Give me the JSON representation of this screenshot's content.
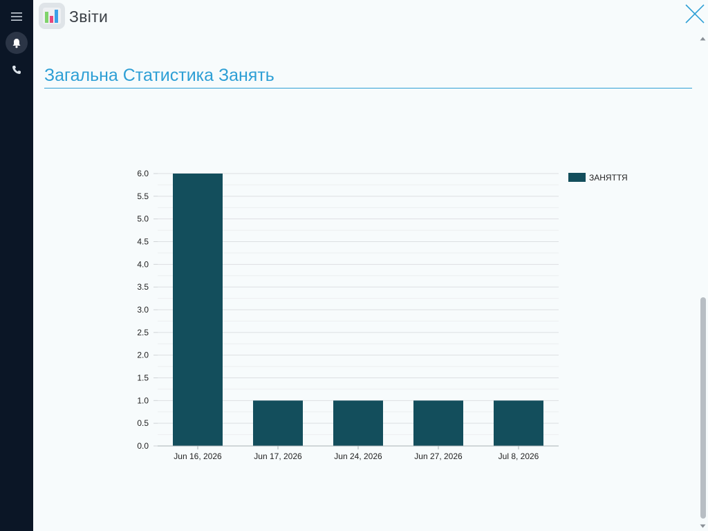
{
  "app": {
    "title": "Звіти",
    "icon": "bar-chart-app-icon"
  },
  "sidebar": {
    "items": [
      {
        "name": "menu",
        "icon": "hamburger-menu-icon"
      },
      {
        "name": "notifications",
        "icon": "bell-icon",
        "active": true
      },
      {
        "name": "calls",
        "icon": "phone-icon"
      }
    ]
  },
  "section": {
    "title": "Загальна Статистика Занять"
  },
  "colors": {
    "accent": "#2e9fd5",
    "sidebar_bg": "#0b1626",
    "bar": "#134e5c",
    "page_bg": "#f7fbfc"
  },
  "chart_data": {
    "type": "bar",
    "title": "",
    "xlabel": "",
    "ylabel": "",
    "categories": [
      "Jun 16, 2026",
      "Jun 17, 2026",
      "Jun 24, 2026",
      "Jun 27, 2026",
      "Jul 8, 2026"
    ],
    "series": [
      {
        "name": "ЗАНЯТТЯ",
        "values": [
          6,
          1,
          1,
          1,
          1
        ],
        "color": "#134e5c"
      }
    ],
    "ylim": [
      0,
      6
    ],
    "yticks": [
      "0.0",
      "0.5",
      "1.0",
      "1.5",
      "2.0",
      "2.5",
      "3.0",
      "3.5",
      "4.0",
      "4.5",
      "5.0",
      "5.5",
      "6.0"
    ],
    "grid": true,
    "legend": "top-right"
  }
}
